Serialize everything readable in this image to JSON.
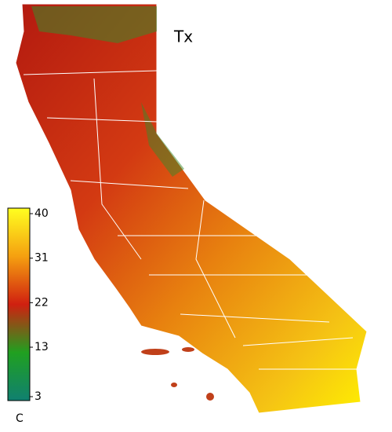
{
  "title": "Tx",
  "colorbar": {
    "ticks": [
      40,
      31,
      22,
      13,
      3
    ],
    "unit": "C"
  }
}
